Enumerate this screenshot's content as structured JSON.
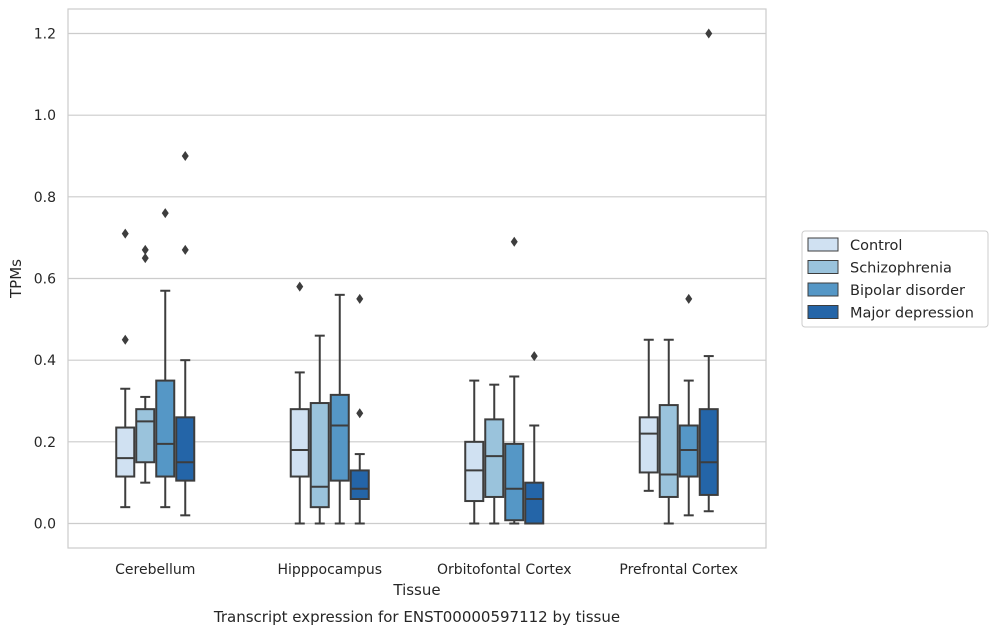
{
  "chart_data": {
    "type": "box",
    "caption": "Transcript expression for ENST00000597112 by tissue",
    "xlabel": "Tissue",
    "ylabel": "TPMs",
    "ylim": [
      -0.06,
      1.26
    ],
    "yticks": [
      0.0,
      0.2,
      0.4,
      0.6,
      0.8,
      1.0,
      1.2
    ],
    "ytick_labels": [
      "0.0",
      "0.2",
      "0.4",
      "0.6",
      "0.8",
      "1.0",
      "1.2"
    ],
    "grid": true,
    "legend_position": "right",
    "categories": [
      "Cerebellum",
      "Hipppocampus",
      "Orbitofontal Cortex",
      "Prefrontal Cortex"
    ],
    "series": [
      {
        "name": "Control",
        "color": "#d0e1f2",
        "boxes": [
          {
            "whisker_low": 0.04,
            "q1": 0.115,
            "median": 0.16,
            "q3": 0.235,
            "whisker_high": 0.33,
            "outliers": [
              0.71,
              0.45
            ]
          },
          {
            "whisker_low": 0.0,
            "q1": 0.115,
            "median": 0.18,
            "q3": 0.28,
            "whisker_high": 0.37,
            "outliers": [
              0.58
            ]
          },
          {
            "whisker_low": 0.0,
            "q1": 0.055,
            "median": 0.13,
            "q3": 0.2,
            "whisker_high": 0.35,
            "outliers": []
          },
          {
            "whisker_low": 0.08,
            "q1": 0.125,
            "median": 0.22,
            "q3": 0.26,
            "whisker_high": 0.45,
            "outliers": []
          }
        ]
      },
      {
        "name": "Schizophrenia",
        "color": "#9ac3dc",
        "boxes": [
          {
            "whisker_low": 0.1,
            "q1": 0.15,
            "median": 0.25,
            "q3": 0.28,
            "whisker_high": 0.31,
            "outliers": [
              0.67,
              0.65
            ]
          },
          {
            "whisker_low": 0.0,
            "q1": 0.04,
            "median": 0.09,
            "q3": 0.295,
            "whisker_high": 0.46,
            "outliers": []
          },
          {
            "whisker_low": 0.0,
            "q1": 0.065,
            "median": 0.165,
            "q3": 0.255,
            "whisker_high": 0.34,
            "outliers": []
          },
          {
            "whisker_low": 0.0,
            "q1": 0.065,
            "median": 0.12,
            "q3": 0.29,
            "whisker_high": 0.45,
            "outliers": []
          }
        ]
      },
      {
        "name": "Bipolar disorder",
        "color": "#5597c6",
        "boxes": [
          {
            "whisker_low": 0.04,
            "q1": 0.115,
            "median": 0.195,
            "q3": 0.35,
            "whisker_high": 0.57,
            "outliers": [
              0.76
            ]
          },
          {
            "whisker_low": 0.0,
            "q1": 0.105,
            "median": 0.24,
            "q3": 0.315,
            "whisker_high": 0.56,
            "outliers": []
          },
          {
            "whisker_low": 0.0,
            "q1": 0.008,
            "median": 0.085,
            "q3": 0.195,
            "whisker_high": 0.36,
            "outliers": [
              0.69
            ]
          },
          {
            "whisker_low": 0.02,
            "q1": 0.115,
            "median": 0.18,
            "q3": 0.24,
            "whisker_high": 0.35,
            "outliers": [
              0.55
            ]
          }
        ]
      },
      {
        "name": "Major depression",
        "color": "#2465a8",
        "boxes": [
          {
            "whisker_low": 0.02,
            "q1": 0.105,
            "median": 0.15,
            "q3": 0.26,
            "whisker_high": 0.4,
            "outliers": [
              0.9,
              0.67
            ]
          },
          {
            "whisker_low": 0.0,
            "q1": 0.06,
            "median": 0.085,
            "q3": 0.13,
            "whisker_high": 0.17,
            "outliers": [
              0.55,
              0.27
            ]
          },
          {
            "whisker_low": 0.0,
            "q1": 0.0,
            "median": 0.06,
            "q3": 0.1,
            "whisker_high": 0.24,
            "outliers": [
              0.41
            ]
          },
          {
            "whisker_low": 0.03,
            "q1": 0.07,
            "median": 0.15,
            "q3": 0.28,
            "whisker_high": 0.41,
            "outliers": [
              1.2
            ]
          }
        ]
      }
    ]
  }
}
